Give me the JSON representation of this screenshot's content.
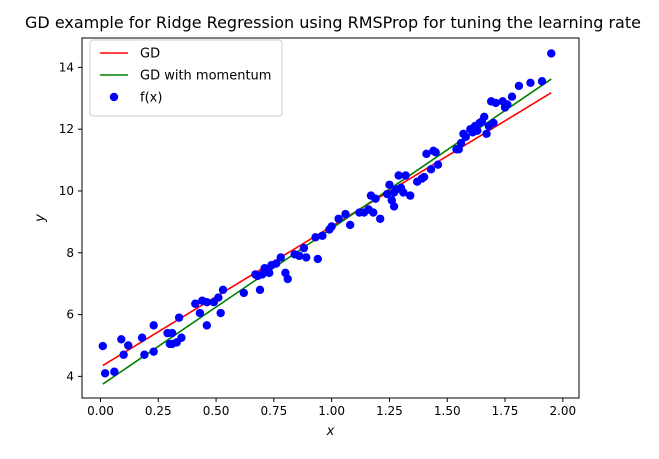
{
  "chart_data": {
    "type": "scatter",
    "title": "GD example for Ridge Regression using RMSProp for tuning the learning rate",
    "xlabel": "x",
    "ylabel": "y",
    "xlim": [
      -0.08,
      2.07
    ],
    "ylim": [
      3.3,
      14.95
    ],
    "xticks": [
      0.0,
      0.25,
      0.5,
      0.75,
      1.0,
      1.25,
      1.5,
      1.75,
      2.0
    ],
    "xtick_labels": [
      "0.00",
      "0.25",
      "0.50",
      "0.75",
      "1.00",
      "1.25",
      "1.50",
      "1.75",
      "2.00"
    ],
    "yticks": [
      4,
      6,
      8,
      10,
      12,
      14
    ],
    "ytick_labels": [
      "4",
      "6",
      "8",
      "10",
      "12",
      "14"
    ],
    "grid": false,
    "legend_position": "top-left",
    "series": [
      {
        "name": "GD",
        "kind": "line",
        "color": "#ff0000",
        "x": [
          0.01,
          1.95
        ],
        "y": [
          4.35,
          13.18
        ]
      },
      {
        "name": "GD with momentum",
        "kind": "line",
        "color": "#008000",
        "x": [
          0.01,
          1.95
        ],
        "y": [
          3.75,
          13.62
        ]
      },
      {
        "name": "f(x)",
        "kind": "scatter",
        "color": "#0000ff",
        "x": [
          0.01,
          0.02,
          0.06,
          0.09,
          0.1,
          0.12,
          0.18,
          0.19,
          0.23,
          0.23,
          0.29,
          0.3,
          0.31,
          0.31,
          0.33,
          0.34,
          0.35,
          0.41,
          0.43,
          0.44,
          0.46,
          0.46,
          0.49,
          0.51,
          0.52,
          0.53,
          0.62,
          0.67,
          0.68,
          0.69,
          0.7,
          0.71,
          0.73,
          0.74,
          0.76,
          0.78,
          0.8,
          0.81,
          0.84,
          0.86,
          0.88,
          0.89,
          0.93,
          0.94,
          0.96,
          0.99,
          1.0,
          1.03,
          1.06,
          1.08,
          1.12,
          1.14,
          1.16,
          1.17,
          1.18,
          1.19,
          1.21,
          1.24,
          1.25,
          1.26,
          1.27,
          1.27,
          1.28,
          1.29,
          1.3,
          1.31,
          1.32,
          1.34,
          1.37,
          1.39,
          1.4,
          1.41,
          1.43,
          1.44,
          1.45,
          1.46,
          1.54,
          1.55,
          1.56,
          1.57,
          1.58,
          1.6,
          1.61,
          1.62,
          1.63,
          1.64,
          1.65,
          1.66,
          1.67,
          1.68,
          1.69,
          1.7,
          1.71,
          1.74,
          1.75,
          1.76,
          1.78,
          1.81,
          1.86,
          1.91,
          1.95
        ],
        "y": [
          4.98,
          4.1,
          4.15,
          5.2,
          4.7,
          5.0,
          5.25,
          4.7,
          4.8,
          5.65,
          5.4,
          5.05,
          5.05,
          5.4,
          5.1,
          5.9,
          5.25,
          6.35,
          6.05,
          6.45,
          5.65,
          6.4,
          6.4,
          6.55,
          6.05,
          6.8,
          6.7,
          7.3,
          7.25,
          6.8,
          7.3,
          7.5,
          7.35,
          7.6,
          7.65,
          7.85,
          7.35,
          7.15,
          7.95,
          7.9,
          8.15,
          7.85,
          8.5,
          7.8,
          8.55,
          8.75,
          8.85,
          9.1,
          9.25,
          8.9,
          9.3,
          9.3,
          9.4,
          9.85,
          9.3,
          9.75,
          9.1,
          9.9,
          10.2,
          9.7,
          9.5,
          9.95,
          10.05,
          10.5,
          10.1,
          9.95,
          10.5,
          9.85,
          10.3,
          10.4,
          10.45,
          11.2,
          10.7,
          11.3,
          11.25,
          10.85,
          11.35,
          11.35,
          11.55,
          11.85,
          11.75,
          12.0,
          11.9,
          12.1,
          11.95,
          12.2,
          12.25,
          12.4,
          11.85,
          12.1,
          12.9,
          12.2,
          12.85,
          12.9,
          12.7,
          12.8,
          13.05,
          13.4,
          13.5,
          13.55,
          14.45
        ]
      }
    ]
  }
}
